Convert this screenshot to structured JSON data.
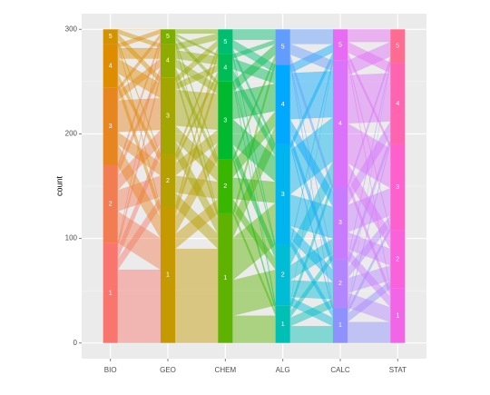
{
  "chart_data": {
    "type": "parallel-sets",
    "y_label": "count",
    "categories": [
      "BIO",
      "GEO",
      "CHEM",
      "ALG",
      "CALC",
      "STAT"
    ],
    "levels": [
      "1",
      "2",
      "3",
      "4",
      "5"
    ],
    "counts": [
      [
        96,
        74,
        74,
        42,
        14
      ],
      [
        130,
        50,
        74,
        32,
        14
      ],
      [
        124,
        52,
        74,
        26,
        24
      ],
      [
        36,
        58,
        96,
        76,
        34
      ],
      [
        34,
        46,
        70,
        120,
        30
      ],
      [
        52,
        56,
        82,
        78,
        32
      ]
    ],
    "flows": [
      [
        [
          70,
          10,
          10,
          4,
          2
        ],
        [
          30,
          20,
          14,
          6,
          4
        ],
        [
          20,
          12,
          30,
          8,
          4
        ],
        [
          8,
          6,
          14,
          10,
          4
        ],
        [
          2,
          2,
          6,
          4,
          0
        ]
      ],
      [
        [
          90,
          14,
          16,
          6,
          4
        ],
        [
          14,
          16,
          12,
          4,
          4
        ],
        [
          14,
          14,
          34,
          6,
          6
        ],
        [
          4,
          6,
          8,
          8,
          6
        ],
        [
          2,
          2,
          4,
          2,
          4
        ]
      ],
      [
        [
          26,
          34,
          40,
          18,
          6
        ],
        [
          4,
          10,
          20,
          14,
          4
        ],
        [
          4,
          10,
          24,
          26,
          10
        ],
        [
          2,
          2,
          8,
          10,
          4
        ],
        [
          0,
          2,
          4,
          8,
          10
        ]
      ],
      [
        [
          16,
          8,
          6,
          6,
          0
        ],
        [
          8,
          16,
          14,
          18,
          2
        ],
        [
          6,
          12,
          30,
          42,
          6
        ],
        [
          2,
          8,
          14,
          44,
          8
        ],
        [
          2,
          2,
          6,
          10,
          14
        ]
      ],
      [
        [
          20,
          8,
          4,
          2,
          0
        ],
        [
          14,
          14,
          10,
          6,
          2
        ],
        [
          10,
          16,
          26,
          14,
          4
        ],
        [
          6,
          16,
          38,
          46,
          14
        ],
        [
          2,
          2,
          4,
          10,
          12
        ]
      ]
    ],
    "colors": [
      [
        "#F8766D",
        "#F27D52",
        "#E7851E",
        "#DE8C00",
        "#D39200"
      ],
      [
        "#C49A00",
        "#B4A000",
        "#A3A500",
        "#8FAA00",
        "#7CAE00"
      ],
      [
        "#5EB300",
        "#39B600",
        "#00B92F",
        "#00BC56",
        "#00BE70"
      ],
      [
        "#00BFB4",
        "#00BCD4",
        "#00B4EF",
        "#00A9FF",
        "#619CFF"
      ],
      [
        "#8F91FF",
        "#B385FF",
        "#C77CFF",
        "#DB72FB",
        "#E76BF3"
      ],
      [
        "#F265E7",
        "#FA62DB",
        "#FF61CC",
        "#FF64B0",
        "#FF6C91"
      ]
    ],
    "ylim": [
      -15,
      315
    ],
    "yticks": [
      0,
      100,
      200,
      300
    ],
    "minor_yticks": [
      50,
      150,
      250
    ],
    "grid": true
  }
}
